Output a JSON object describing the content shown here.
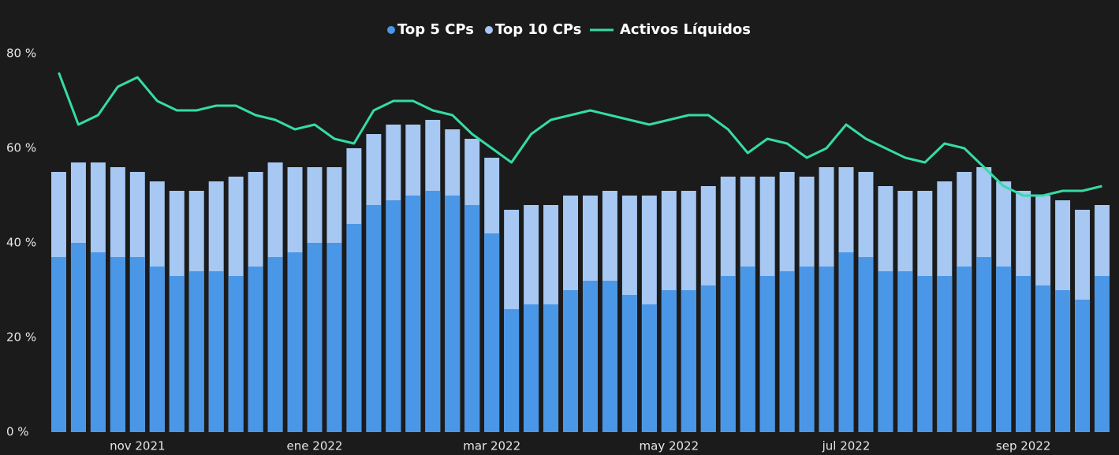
{
  "chart_data": {
    "type": "bar-line",
    "categories": [
      null,
      null,
      null,
      null,
      "nov 2021",
      null,
      null,
      null,
      null,
      null,
      null,
      null,
      null,
      "ene 2022",
      null,
      null,
      null,
      null,
      null,
      null,
      null,
      null,
      "mar 2022",
      null,
      null,
      null,
      null,
      null,
      null,
      null,
      null,
      "may 2022",
      null,
      null,
      null,
      null,
      null,
      null,
      null,
      null,
      "jul 2022",
      null,
      null,
      null,
      null,
      null,
      null,
      null,
      null,
      "sep 2022",
      null,
      null,
      null,
      null
    ],
    "series": [
      {
        "name": "Top 5 CPs",
        "color": "#4a97e8",
        "type": "bar",
        "values": [
          37,
          40,
          38,
          37,
          37,
          35,
          33,
          34,
          34,
          33,
          35,
          37,
          38,
          40,
          40,
          44,
          48,
          49,
          50,
          51,
          50,
          48,
          42,
          26,
          27,
          27,
          30,
          32,
          32,
          29,
          27,
          30,
          30,
          31,
          33,
          35,
          33,
          34,
          35,
          35,
          38,
          37,
          34,
          34,
          33,
          33,
          35,
          37,
          35,
          33,
          31,
          30,
          28,
          33
        ]
      },
      {
        "name": "Top 10 CPs",
        "color": "#a6c8f2",
        "type": "bar",
        "values": [
          55,
          57,
          57,
          56,
          55,
          53,
          51,
          51,
          53,
          54,
          55,
          57,
          56,
          56,
          56,
          60,
          63,
          65,
          65,
          66,
          64,
          62,
          58,
          47,
          48,
          48,
          50,
          50,
          51,
          50,
          50,
          51,
          51,
          52,
          54,
          54,
          54,
          55,
          54,
          56,
          56,
          55,
          52,
          51,
          51,
          53,
          55,
          56,
          53,
          51,
          50,
          49,
          47,
          48
        ]
      },
      {
        "name": "Activos Líquidos",
        "color": "#35dba6",
        "type": "line",
        "values": [
          76,
          65,
          67,
          73,
          75,
          70,
          68,
          68,
          69,
          69,
          67,
          66,
          64,
          65,
          62,
          61,
          68,
          70,
          70,
          68,
          67,
          63,
          60,
          57,
          63,
          66,
          67,
          68,
          67,
          66,
          65,
          66,
          67,
          67,
          64,
          59,
          62,
          61,
          58,
          60,
          65,
          62,
          60,
          58,
          57,
          61,
          60,
          56,
          52,
          50,
          50,
          51,
          51,
          52
        ]
      }
    ],
    "ylim": [
      0,
      80
    ],
    "yticks": [
      {
        "value": 0,
        "label": "0 %"
      },
      {
        "value": 20,
        "label": "20 %"
      },
      {
        "value": 40,
        "label": "40 %"
      },
      {
        "value": 60,
        "label": "60 %"
      },
      {
        "value": 80,
        "label": "80 %"
      }
    ]
  }
}
